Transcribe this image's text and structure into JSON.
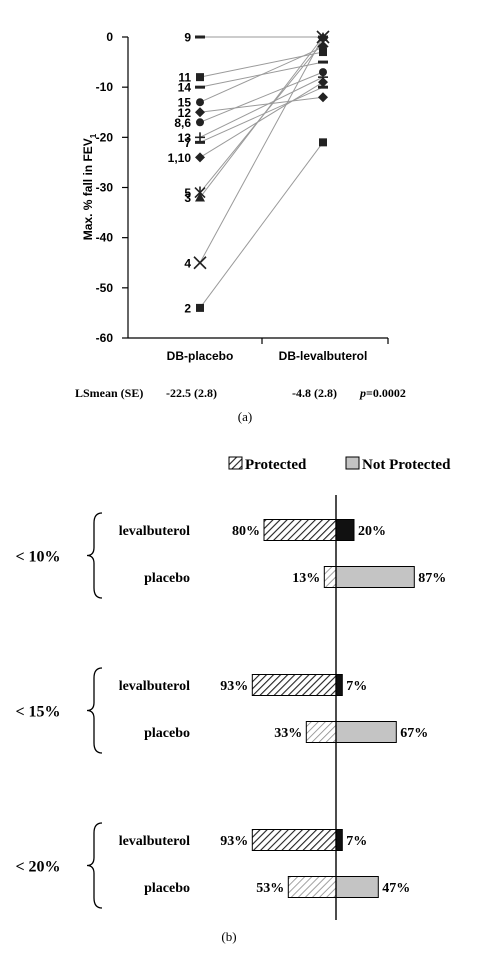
{
  "panel_a": {
    "ylabel_main": "Max. % fall in FEV",
    "ylabel_sub": "1",
    "caption": "(a)",
    "lsmean_label": "LSmean (SE)",
    "lsmean_placebo": "-22.5 (2.8)",
    "lsmean_levalbuterol": "-4.8 (2.8)",
    "pvalue_p": "p",
    "pvalue_rest": "=0.0002"
  },
  "panel_b": {
    "caption": "(b)",
    "legend": {
      "protected": "Protected",
      "not_protected": "Not Protected"
    }
  },
  "chart_data": [
    {
      "type": "line",
      "ylabel": "Max. % fall in FEV1",
      "categories": [
        "DB-placebo",
        "DB-levalbuterol"
      ],
      "ylim": [
        -60,
        0
      ],
      "yticks": [
        0,
        -10,
        -20,
        -30,
        -40,
        -50,
        -60
      ],
      "subjects": [
        {
          "label": "9",
          "values": [
            0,
            0
          ],
          "marker": "dash"
        },
        {
          "label": "11",
          "values": [
            -8,
            -3
          ],
          "marker": "square"
        },
        {
          "label": "14",
          "values": [
            -10,
            -5
          ],
          "marker": "dash"
        },
        {
          "label": "15",
          "values": [
            -13,
            -2
          ],
          "marker": "circle"
        },
        {
          "label": "12",
          "values": [
            -15,
            -12
          ],
          "marker": "diamond"
        },
        {
          "label": "8,6",
          "values": [
            -17,
            -7
          ],
          "marker": "circle"
        },
        {
          "label": "13",
          "values": [
            -20,
            -8
          ],
          "marker": "plus"
        },
        {
          "label": "7",
          "values": [
            -21,
            -10
          ],
          "marker": "dash"
        },
        {
          "label": "1,10",
          "values": [
            -24,
            -9
          ],
          "marker": "diamond"
        },
        {
          "label": "5",
          "values": [
            -31,
            -1
          ],
          "marker": "star"
        },
        {
          "label": "3",
          "values": [
            -32,
            0
          ],
          "marker": "triangle"
        },
        {
          "label": "4",
          "values": [
            -45,
            0
          ],
          "marker": "x"
        },
        {
          "label": "2",
          "values": [
            -54,
            -21
          ],
          "marker": "square"
        }
      ]
    },
    {
      "type": "bar",
      "orientation": "diverging-horizontal",
      "series": [
        {
          "name": "Protected",
          "side": "left"
        },
        {
          "name": "Not Protected",
          "side": "right"
        }
      ],
      "groups": [
        {
          "threshold": "< 10%",
          "rows": [
            {
              "label": "levalbuterol",
              "protected": 80,
              "not_protected": 20
            },
            {
              "label": "placebo",
              "protected": 13,
              "not_protected": 87
            }
          ]
        },
        {
          "threshold": "< 15%",
          "rows": [
            {
              "label": "levalbuterol",
              "protected": 93,
              "not_protected": 7
            },
            {
              "label": "placebo",
              "protected": 33,
              "not_protected": 67
            }
          ]
        },
        {
          "threshold": "< 20%",
          "rows": [
            {
              "label": "levalbuterol",
              "protected": 93,
              "not_protected": 7
            },
            {
              "label": "placebo",
              "protected": 53,
              "not_protected": 47
            }
          ]
        }
      ],
      "colors": {
        "levalbuterol_not_protected": "#111111",
        "placebo_not_protected": "#c4c4c4",
        "hatch": "#222222",
        "placebo_hatch": "#7a7a7a"
      }
    }
  ]
}
